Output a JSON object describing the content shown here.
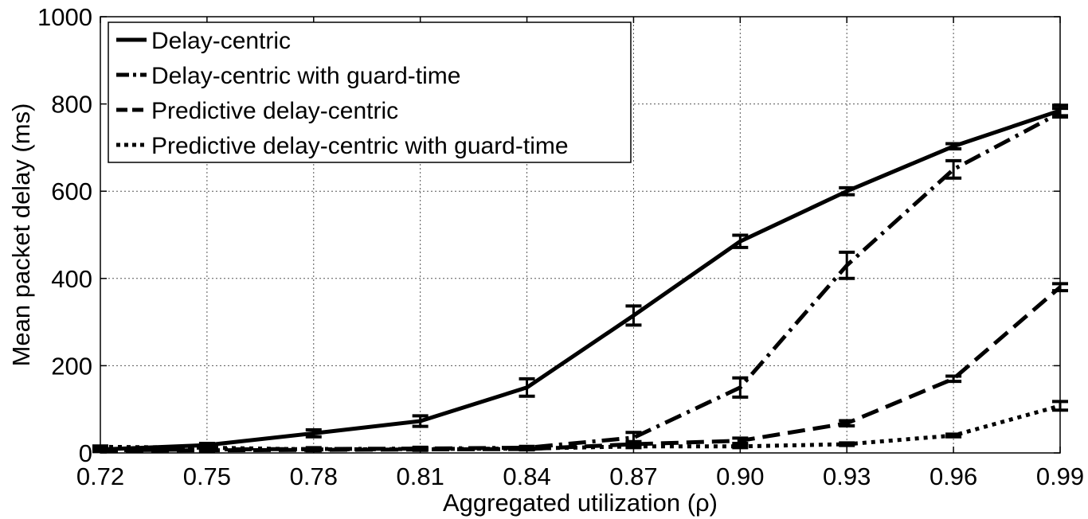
{
  "chart_data": {
    "type": "line",
    "title": "",
    "xlabel": "Aggregated utilization (ρ)",
    "ylabel": "Mean packet delay (ms)",
    "xlim": [
      0.72,
      0.99
    ],
    "ylim": [
      0,
      1000
    ],
    "x_ticks": [
      "0.72",
      "0.75",
      "0.78",
      "0.81",
      "0.84",
      "0.87",
      "0.90",
      "0.93",
      "0.96",
      "0.99"
    ],
    "y_ticks": [
      "0",
      "200",
      "400",
      "600",
      "800",
      "1000"
    ],
    "grid": true,
    "legend_position": "top-left",
    "x": [
      0.72,
      0.75,
      0.78,
      0.81,
      0.84,
      0.87,
      0.9,
      0.93,
      0.96,
      0.99
    ],
    "series": [
      {
        "name": "Delay-centric",
        "line_style": "solid",
        "values": [
          8,
          18,
          45,
          73,
          150,
          315,
          485,
          600,
          703,
          785
        ],
        "errors": [
          3,
          4,
          8,
          12,
          20,
          22,
          14,
          8,
          6,
          12
        ]
      },
      {
        "name": "Delay-centric with guard-time",
        "line_style": "dash-dot",
        "values": [
          6,
          8,
          9,
          10,
          12,
          35,
          150,
          430,
          650,
          780
        ],
        "errors": [
          2,
          3,
          3,
          3,
          3,
          12,
          22,
          30,
          20,
          10
        ]
      },
      {
        "name": "Predictive delay-centric",
        "line_style": "dashed",
        "values": [
          5,
          6,
          7,
          8,
          9,
          20,
          28,
          68,
          170,
          380
        ],
        "errors": [
          2,
          2,
          2,
          2,
          2,
          6,
          6,
          6,
          6,
          8
        ]
      },
      {
        "name": "Predictive delay-centric with guard-time",
        "line_style": "dotted",
        "values": [
          14,
          12,
          8,
          9,
          10,
          15,
          15,
          20,
          40,
          108
        ],
        "errors": [
          2,
          2,
          2,
          2,
          2,
          3,
          3,
          3,
          3,
          10
        ]
      }
    ]
  }
}
